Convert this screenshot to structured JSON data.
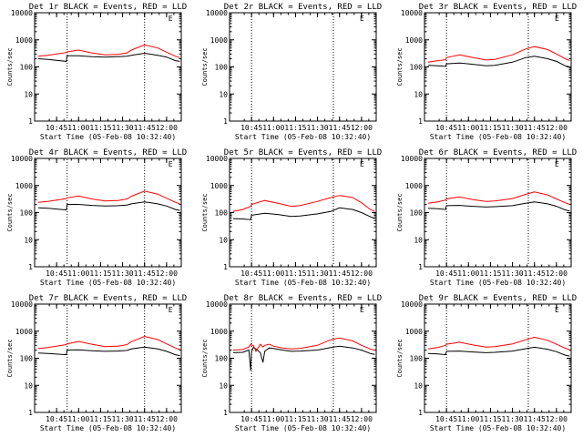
{
  "figure": {
    "common": {
      "ylabel": "Counts/sec",
      "xlabel": "Start Time (05-Feb-08 10:32:40)",
      "y_tick_labels": [
        "1",
        "10",
        "100",
        "1000",
        "10000"
      ],
      "marker_label": "E",
      "colors": {
        "events": "#000000",
        "lld": "#ff0000",
        "axes": "#000000"
      }
    }
  },
  "chart_data": [
    {
      "type": "line",
      "title": "Det 1r BLACK = Events, RED = LLD",
      "yscale": "log",
      "ylim": [
        1,
        10000
      ],
      "xlim": [
        10.5,
        12.167
      ],
      "x_tick_labels": [
        "10:45",
        "11:00",
        "11:15",
        "11:30",
        "11:45",
        "12:00"
      ],
      "x_ticks": [
        10.75,
        11.0,
        11.25,
        11.5,
        11.75,
        12.0
      ],
      "vlines": [
        10.87,
        11.75
      ],
      "marker_x": 12.02,
      "x": [
        10.54,
        10.65,
        10.86,
        10.87,
        11.0,
        11.15,
        11.3,
        11.45,
        11.55,
        11.6,
        11.75,
        11.9,
        12.0,
        12.1,
        12.15
      ],
      "series": [
        {
          "role": "events",
          "values": [
            200,
            190,
            160,
            260,
            260,
            240,
            230,
            240,
            250,
            270,
            320,
            270,
            230,
            170,
            160
          ]
        },
        {
          "role": "lld",
          "values": [
            250,
            270,
            340,
            360,
            420,
            330,
            280,
            290,
            330,
            420,
            650,
            500,
            350,
            250,
            220
          ]
        }
      ]
    },
    {
      "type": "line",
      "title": "Det 2r BLACK = Events, RED = LLD",
      "yscale": "log",
      "ylim": [
        1,
        10000
      ],
      "xlim": [
        10.5,
        12.167
      ],
      "x_tick_labels": [
        "10:45",
        "11:00",
        "11:15",
        "11:30",
        "11:45",
        "12:00"
      ],
      "x_ticks": [
        10.75,
        11.0,
        11.25,
        11.5,
        11.75,
        12.0
      ],
      "vlines": [
        10.75,
        11.68
      ],
      "marker_x": 11.98,
      "x": [],
      "series": []
    },
    {
      "type": "line",
      "title": "Det 3r BLACK = Events, RED = LLD",
      "yscale": "log",
      "ylim": [
        1,
        10000
      ],
      "xlim": [
        10.5,
        12.167
      ],
      "x_tick_labels": [
        "10:45",
        "11:00",
        "11:15",
        "11:30",
        "11:45",
        "12:00"
      ],
      "x_ticks": [
        10.75,
        11.0,
        11.25,
        11.5,
        11.75,
        12.0
      ],
      "vlines": [
        10.75,
        11.68
      ],
      "marker_x": 11.98,
      "x": [
        10.54,
        10.65,
        10.74,
        10.75,
        10.9,
        11.05,
        11.2,
        11.3,
        11.5,
        11.65,
        11.75,
        11.9,
        12.0,
        12.1,
        12.15
      ],
      "series": [
        {
          "role": "events",
          "values": [
            115,
            110,
            105,
            130,
            140,
            125,
            110,
            115,
            150,
            220,
            250,
            200,
            160,
            110,
            100
          ]
        },
        {
          "role": "lld",
          "values": [
            150,
            170,
            185,
            220,
            280,
            220,
            180,
            190,
            280,
            460,
            560,
            440,
            300,
            200,
            170
          ]
        }
      ]
    },
    {
      "type": "line",
      "title": "Det 4r BLACK = Events, RED = LLD",
      "yscale": "log",
      "ylim": [
        1,
        10000
      ],
      "xlim": [
        10.5,
        12.167
      ],
      "x_tick_labels": [
        "10:45",
        "11:00",
        "11:15",
        "11:30",
        "11:45",
        "12:00"
      ],
      "x_ticks": [
        10.75,
        11.0,
        11.25,
        11.5,
        11.75,
        12.0
      ],
      "vlines": [
        10.87,
        11.75
      ],
      "marker_x": 12.02,
      "x": [
        10.54,
        10.65,
        10.86,
        10.87,
        11.0,
        11.15,
        11.3,
        11.45,
        11.55,
        11.6,
        11.75,
        11.9,
        12.0,
        12.1,
        12.15
      ],
      "series": [
        {
          "role": "events",
          "values": [
            150,
            145,
            125,
            200,
            200,
            185,
            175,
            180,
            190,
            210,
            250,
            210,
            175,
            130,
            120
          ]
        },
        {
          "role": "lld",
          "values": [
            240,
            260,
            330,
            350,
            410,
            320,
            270,
            280,
            320,
            400,
            620,
            480,
            340,
            240,
            210
          ]
        }
      ]
    },
    {
      "type": "line",
      "title": "Det 5r BLACK = Events, RED = LLD",
      "yscale": "log",
      "ylim": [
        1,
        10000
      ],
      "xlim": [
        10.5,
        12.167
      ],
      "x_tick_labels": [
        "10:45",
        "11:00",
        "11:15",
        "11:30",
        "11:45",
        "12:00"
      ],
      "x_ticks": [
        10.75,
        11.0,
        11.25,
        11.5,
        11.75,
        12.0
      ],
      "vlines": [
        10.75,
        11.68
      ],
      "marker_x": 11.98,
      "x": [
        10.54,
        10.65,
        10.74,
        10.75,
        10.9,
        11.05,
        11.2,
        11.3,
        11.5,
        11.65,
        11.75,
        11.9,
        12.0,
        12.1,
        12.15
      ],
      "series": [
        {
          "role": "events",
          "values": [
            60,
            58,
            55,
            80,
            95,
            85,
            72,
            75,
            90,
            110,
            150,
            130,
            100,
            70,
            60
          ]
        },
        {
          "role": "lld",
          "values": [
            110,
            130,
            170,
            200,
            280,
            220,
            170,
            180,
            260,
            360,
            430,
            360,
            230,
            130,
            110
          ]
        }
      ]
    },
    {
      "type": "line",
      "title": "Det 6r BLACK = Events, RED = LLD",
      "yscale": "log",
      "ylim": [
        1,
        10000
      ],
      "xlim": [
        10.5,
        12.167
      ],
      "x_tick_labels": [
        "10:45",
        "11:00",
        "11:15",
        "11:30",
        "11:45",
        "12:00"
      ],
      "x_ticks": [
        10.75,
        11.0,
        11.25,
        11.5,
        11.75,
        12.0
      ],
      "vlines": [
        10.75,
        11.68
      ],
      "marker_x": 11.98,
      "x": [
        10.54,
        10.65,
        10.74,
        10.75,
        10.9,
        11.05,
        11.2,
        11.3,
        11.5,
        11.65,
        11.75,
        11.9,
        12.0,
        12.1,
        12.15
      ],
      "series": [
        {
          "role": "events",
          "values": [
            145,
            140,
            130,
            180,
            185,
            170,
            160,
            165,
            180,
            220,
            250,
            210,
            170,
            125,
            115
          ]
        },
        {
          "role": "lld",
          "values": [
            220,
            250,
            290,
            320,
            380,
            300,
            260,
            270,
            330,
            470,
            580,
            450,
            320,
            230,
            200
          ]
        }
      ]
    },
    {
      "type": "line",
      "title": "Det 7r BLACK = Events, RED = LLD",
      "yscale": "log",
      "ylim": [
        1,
        10000
      ],
      "xlim": [
        10.5,
        12.167
      ],
      "x_tick_labels": [
        "10:45",
        "11:00",
        "11:15",
        "11:30",
        "11:45",
        "12:00"
      ],
      "x_ticks": [
        10.75,
        11.0,
        11.25,
        11.5,
        11.75,
        12.0
      ],
      "vlines": [
        10.87,
        11.75
      ],
      "marker_x": 12.02,
      "x": [
        10.54,
        10.65,
        10.86,
        10.87,
        11.0,
        11.15,
        11.3,
        11.45,
        11.55,
        11.6,
        11.75,
        11.9,
        12.0,
        12.1,
        12.15
      ],
      "series": [
        {
          "role": "events",
          "values": [
            155,
            150,
            135,
            200,
            205,
            190,
            180,
            185,
            195,
            220,
            260,
            220,
            180,
            135,
            125
          ]
        },
        {
          "role": "lld",
          "values": [
            230,
            250,
            320,
            340,
            420,
            330,
            270,
            280,
            320,
            410,
            640,
            490,
            340,
            240,
            210
          ]
        }
      ]
    },
    {
      "type": "line",
      "title": "Det 8r BLACK = Events, RED = LLD",
      "yscale": "log",
      "ylim": [
        1,
        10000
      ],
      "xlim": [
        10.5,
        12.167
      ],
      "x_tick_labels": [
        "10:45",
        "11:00",
        "11:15",
        "11:30",
        "11:45",
        "12:00"
      ],
      "x_ticks": [
        10.75,
        11.0,
        11.25,
        11.5,
        11.75,
        12.0
      ],
      "vlines": [
        10.75,
        11.68
      ],
      "marker_x": 11.98,
      "x": [
        10.54,
        10.65,
        10.72,
        10.74,
        10.75,
        10.77,
        10.8,
        10.85,
        10.88,
        10.9,
        10.95,
        11.0,
        11.1,
        11.2,
        11.3,
        11.5,
        11.65,
        11.75,
        11.9,
        12.0,
        12.1,
        12.15
      ],
      "series": [
        {
          "role": "events",
          "values": [
            160,
            165,
            200,
            35,
            170,
            250,
            220,
            160,
            70,
            180,
            240,
            230,
            200,
            180,
            185,
            200,
            250,
            280,
            240,
            200,
            150,
            140
          ]
        },
        {
          "role": "lld",
          "values": [
            200,
            210,
            260,
            330,
            300,
            300,
            180,
            330,
            260,
            300,
            330,
            280,
            240,
            220,
            230,
            300,
            480,
            560,
            440,
            300,
            220,
            200
          ]
        }
      ]
    },
    {
      "type": "line",
      "title": "Det 9r BLACK = Events, RED = LLD",
      "yscale": "log",
      "ylim": [
        1,
        10000
      ],
      "xlim": [
        10.5,
        12.167
      ],
      "x_tick_labels": [
        "10:45",
        "11:00",
        "11:15",
        "11:30",
        "11:45",
        "12:00"
      ],
      "x_ticks": [
        10.75,
        11.0,
        11.25,
        11.5,
        11.75,
        12.0
      ],
      "vlines": [
        10.75,
        11.68
      ],
      "marker_x": 11.98,
      "x": [
        10.54,
        10.65,
        10.74,
        10.75,
        10.9,
        11.05,
        11.2,
        11.3,
        11.5,
        11.65,
        11.75,
        11.9,
        12.0,
        12.1,
        12.15
      ],
      "series": [
        {
          "role": "events",
          "values": [
            150,
            145,
            135,
            180,
            185,
            170,
            160,
            165,
            185,
            225,
            255,
            215,
            175,
            130,
            120
          ]
        },
        {
          "role": "lld",
          "values": [
            220,
            250,
            300,
            330,
            390,
            310,
            260,
            270,
            340,
            480,
            600,
            460,
            330,
            235,
            205
          ]
        }
      ]
    }
  ]
}
